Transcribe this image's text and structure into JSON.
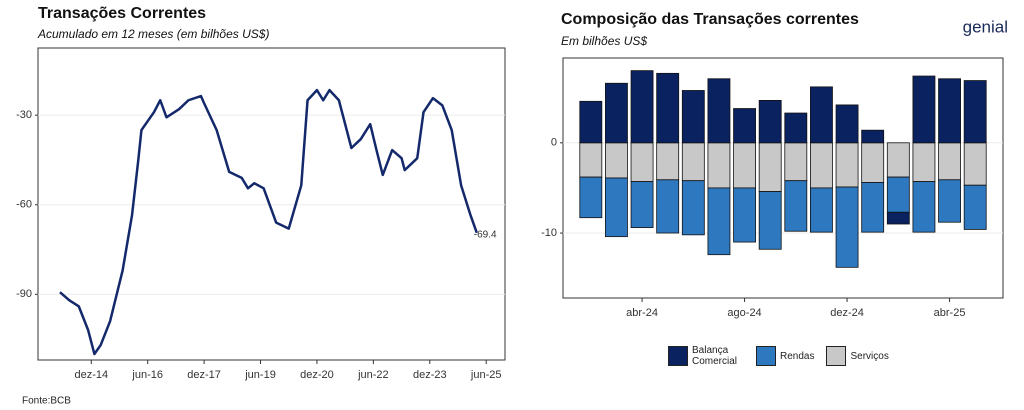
{
  "chart_data": [
    {
      "type": "line",
      "title": "Transações Correntes",
      "subtitle": "Acumulado em 12 meses (em bilhões US$)",
      "x": [
        "2014-02",
        "2014-05",
        "2014-08",
        "2014-11",
        "2015-01",
        "2015-03",
        "2015-06",
        "2015-10",
        "2016-01",
        "2016-03",
        "2016-04",
        "2016-08",
        "2016-10",
        "2016-12",
        "2017-04",
        "2017-07",
        "2017-11",
        "2017-12",
        "2018-04",
        "2018-08",
        "2018-12",
        "2019-02",
        "2019-04",
        "2019-07",
        "2019-11",
        "2020-03",
        "2020-07",
        "2020-09",
        "2020-12",
        "2021-02",
        "2021-04",
        "2021-07",
        "2021-11",
        "2022-02",
        "2022-05",
        "2022-07",
        "2022-09",
        "2022-12",
        "2023-03",
        "2023-04",
        "2023-08",
        "2023-10",
        "2024-01",
        "2024-04",
        "2024-07",
        "2024-10",
        "2025-01",
        "2025-03"
      ],
      "series": [
        {
          "name": "Transações Correntes",
          "color": "#13296b",
          "values": [
            -89.3,
            -92,
            -94,
            -102,
            -110,
            -107,
            -99,
            -82,
            -63.5,
            -45,
            -35,
            -29,
            -25,
            -30.7,
            -28,
            -25,
            -23.6,
            -26,
            -35,
            -49,
            -51,
            -54.5,
            -52.8,
            -54.5,
            -66,
            -68,
            -53.5,
            -25,
            -21.6,
            -25,
            -21.6,
            -25,
            -41,
            -38,
            -33,
            -41.7,
            -50,
            -41.7,
            -44.4,
            -48.4,
            -44.4,
            -29,
            -24.3,
            -26.7,
            -35,
            -53.5,
            -63.5,
            -69.4
          ]
        }
      ],
      "xlim": [
        "2013-07",
        "2025-12"
      ],
      "xticks": [
        {
          "value": "2014-12",
          "label": "dez-14"
        },
        {
          "value": "2016-06",
          "label": "jun-16"
        },
        {
          "value": "2017-12",
          "label": "dez-17"
        },
        {
          "value": "2019-06",
          "label": "jun-19"
        },
        {
          "value": "2020-12",
          "label": "dez-20"
        },
        {
          "value": "2022-06",
          "label": "jun-22"
        },
        {
          "value": "2023-12",
          "label": "dez-23"
        },
        {
          "value": "2025-06",
          "label": "jun-25"
        }
      ],
      "ylim": [
        -112,
        -7.5
      ],
      "yticks": [
        -90,
        -60,
        -30
      ],
      "grid": true
    },
    {
      "type": "bar",
      "title": "Composição das Transações correntes",
      "subtitle": "Em bilhões US$",
      "categories": [
        null,
        null,
        "abr-24",
        null,
        null,
        null,
        "ago-24",
        null,
        null,
        null,
        "dez-24",
        null,
        null,
        null,
        "abr-25",
        null
      ],
      "series": [
        {
          "name": "Balança Comercial",
          "color": "#0b2260",
          "values": [
            4.6,
            6.6,
            8.0,
            7.7,
            5.8,
            7.1,
            3.8,
            4.7,
            3.3,
            6.2,
            4.2,
            1.4,
            -1.3,
            7.4,
            7.1,
            6.9
          ]
        },
        {
          "name": "Rendas",
          "color": "#2e78bf",
          "values": [
            -4.5,
            -6.5,
            -5.1,
            -5.9,
            -6.0,
            -7.4,
            -6.0,
            -6.4,
            -5.6,
            -4.9,
            -8.9,
            -5.5,
            -3.9,
            -5.6,
            -4.7,
            -4.9
          ]
        },
        {
          "name": "Serviços",
          "color": "#c8c8c8",
          "values": [
            -3.8,
            -3.9,
            -4.3,
            -4.1,
            -4.2,
            -5.0,
            -5.0,
            -5.4,
            -4.2,
            -5.0,
            -4.9,
            -4.4,
            -3.8,
            -4.3,
            -4.1,
            -4.7
          ]
        }
      ],
      "ylim": [
        -17.2,
        9.4
      ],
      "yticks": [
        -10,
        0
      ],
      "grid": true,
      "legend": "bottom"
    }
  ],
  "source": "Fonte:BCB",
  "logo": "genial"
}
